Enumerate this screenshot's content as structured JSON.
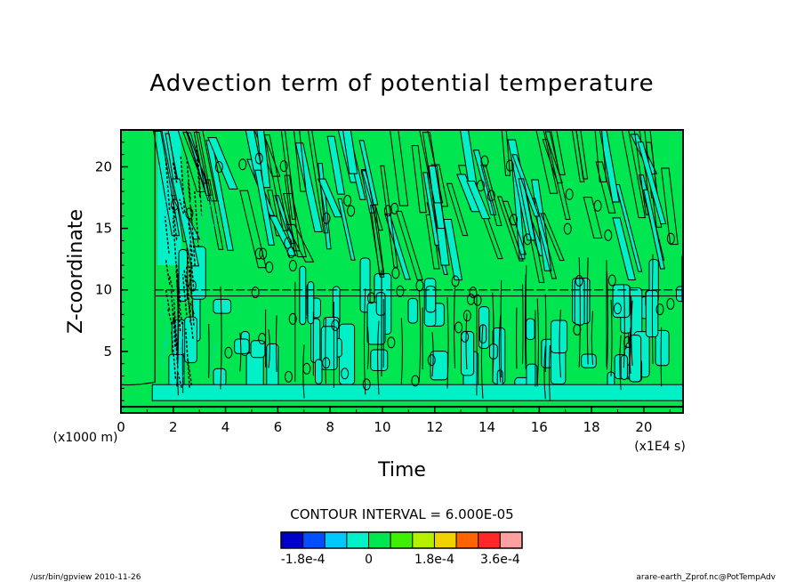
{
  "chart_data": {
    "type": "contour",
    "title": "Advection term of potential temperature",
    "xlabel": "Time",
    "ylabel": "Z-coordinate",
    "x_unit": "(x1E4 s)",
    "y_unit": "(x1000 m)",
    "xlim": [
      0,
      21.5
    ],
    "ylim": [
      0,
      23
    ],
    "x_ticks": [
      0,
      2,
      4,
      6,
      8,
      10,
      12,
      14,
      16,
      18,
      20
    ],
    "y_ticks": [
      5,
      10,
      15,
      20
    ],
    "contour_interval_text": "CONTOUR INTERVAL = 6.000E-05",
    "colorbar": {
      "colors": [
        "#0000c8",
        "#0050ff",
        "#00c8ff",
        "#00f0c8",
        "#00e650",
        "#3cf000",
        "#b4f000",
        "#f0d200",
        "#ff6400",
        "#ff2828",
        "#ffa0a0"
      ],
      "labels": [
        "-1.8e-4",
        "0",
        "1.8e-4",
        "3.6e-4"
      ]
    },
    "regions": {
      "background_color": "#00e650",
      "negative_color": "#00f0c8",
      "dashed_line_color": "#00c8ff",
      "contour_line_color": "#000000"
    }
  },
  "footer": {
    "left": "/usr/bin/gpview   2010-11-26",
    "right": "arare-earth_Zprof.nc@PotTempAdv"
  }
}
